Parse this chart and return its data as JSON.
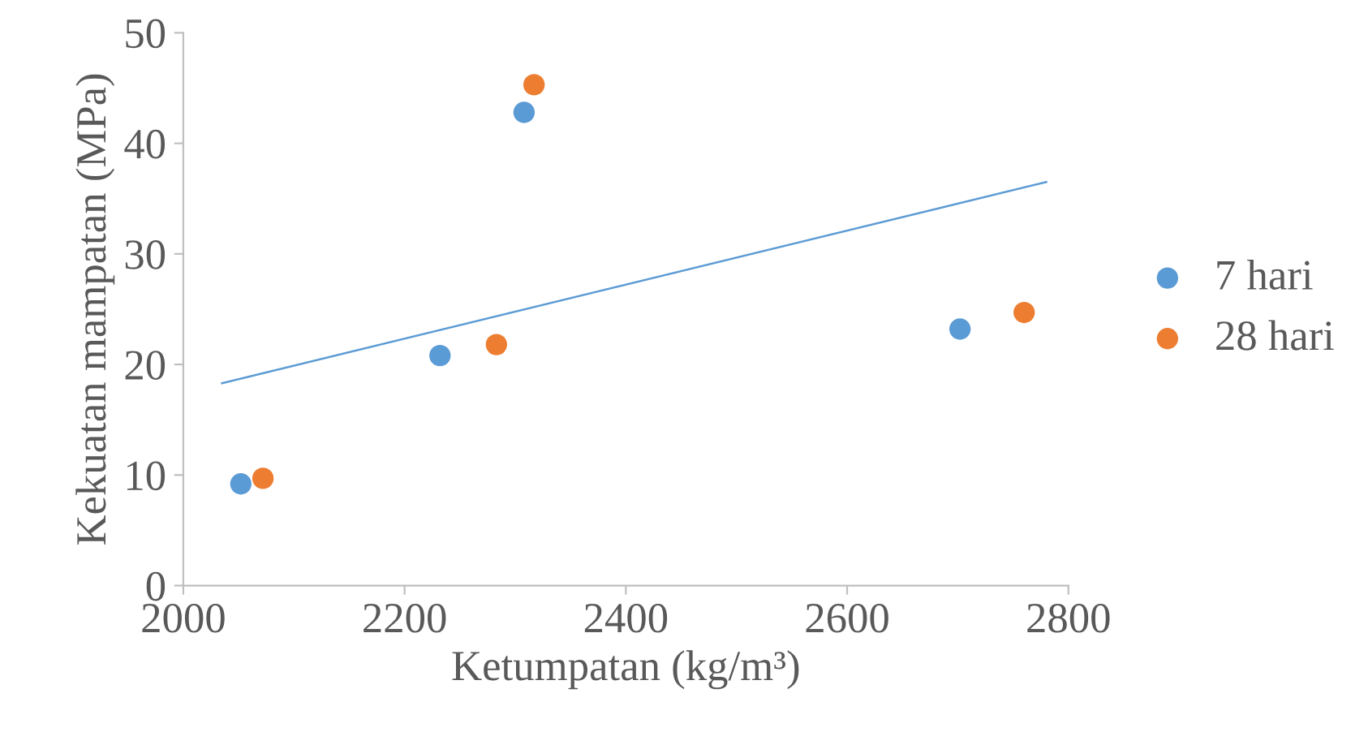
{
  "chart_data": {
    "type": "scatter",
    "xlabel": "Ketumpatan (kg/m³)",
    "ylabel": "Kekuatan mampatan (MPa)",
    "xlim": [
      2000,
      2800
    ],
    "xticks": [
      2000,
      2200,
      2400,
      2600,
      2800
    ],
    "ylim": [
      0,
      50
    ],
    "yticks": [
      0,
      10,
      20,
      30,
      40,
      50
    ],
    "legend": "right",
    "grid": false,
    "series": [
      {
        "name": "7 hari",
        "marker": "circle",
        "color": "#5b9bd5",
        "x": [
          2052,
          2232,
          2308,
          2702
        ],
        "values": [
          9.2,
          20.8,
          42.8,
          23.2
        ]
      },
      {
        "name": "28 hari",
        "marker": "circle",
        "color": "#ed7d31",
        "x": [
          2072,
          2283,
          2317,
          2760
        ],
        "values": [
          9.7,
          21.8,
          45.3,
          24.7
        ]
      },
      {
        "type": "line",
        "color": "#5b9bd5",
        "x": [
          2035,
          2780
        ],
        "values": [
          18.3,
          36.5
        ]
      }
    ]
  }
}
